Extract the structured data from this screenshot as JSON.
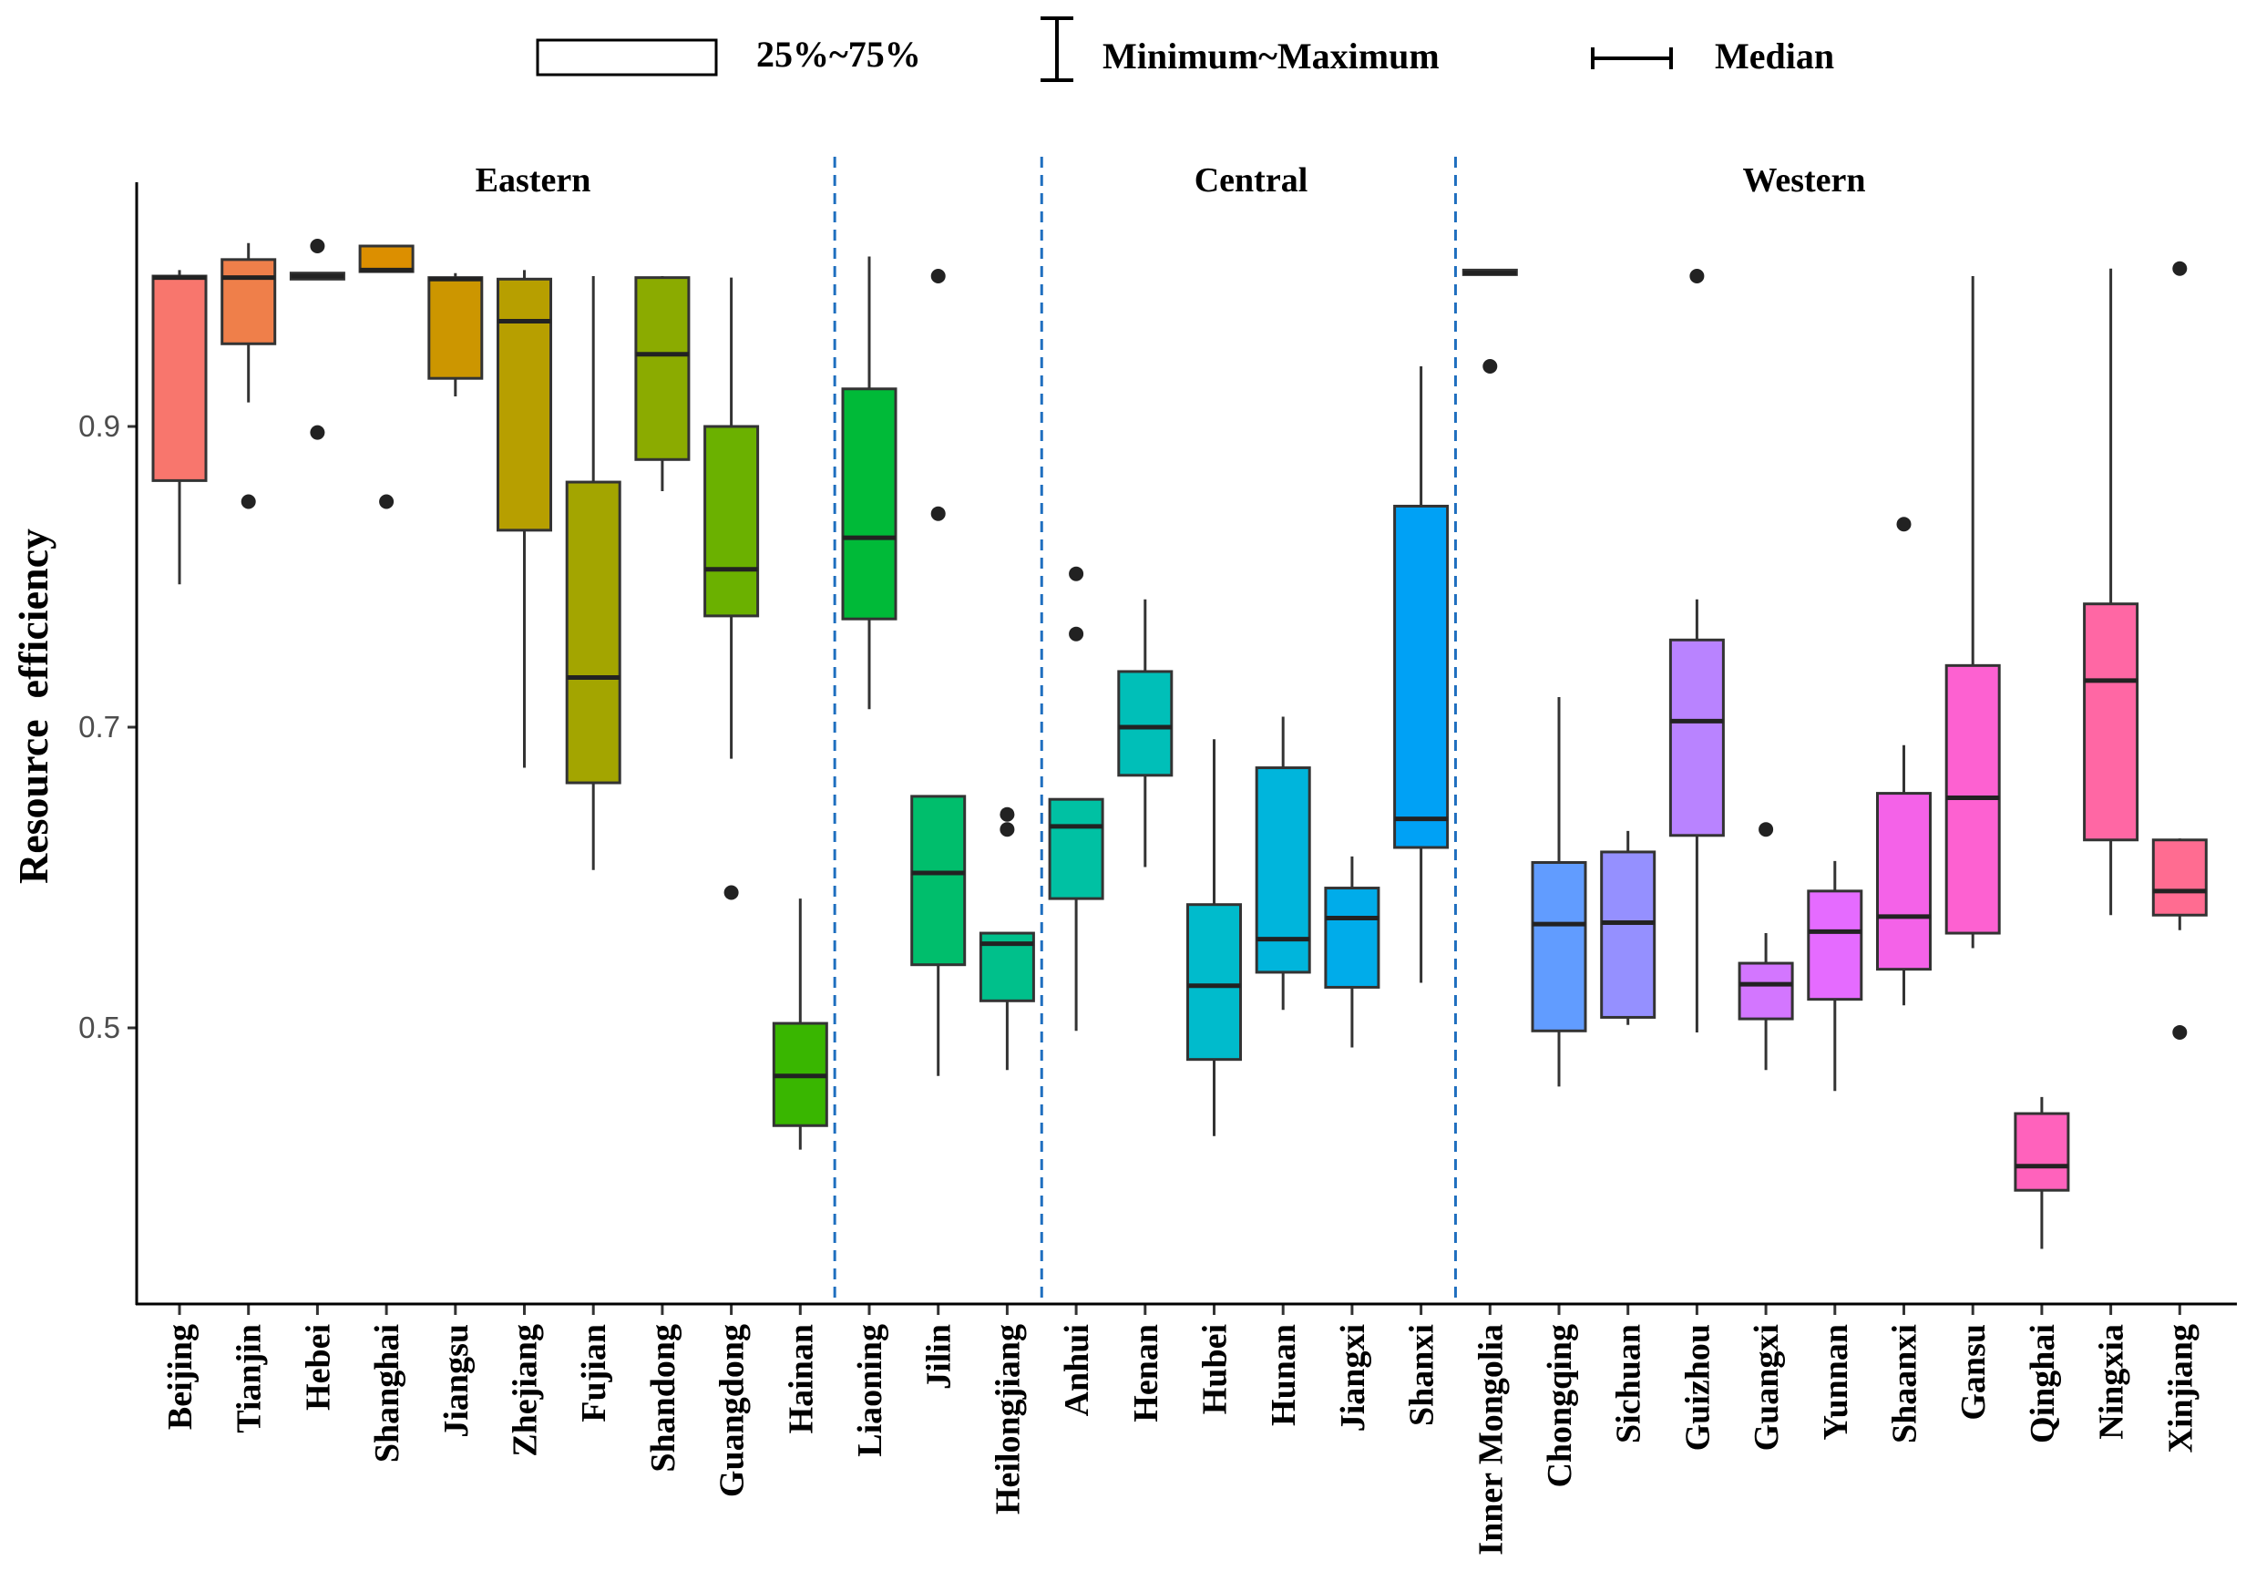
{
  "chart_data": {
    "type": "box",
    "title": "",
    "xlabel": "",
    "ylabel": "Resource  efficiency",
    "ylim": [
      0.318,
      1.06
    ],
    "yticks": [
      0.5,
      0.7,
      0.9
    ],
    "ytick_labels": [
      "0.5",
      "0.7",
      "0.9"
    ],
    "legend": {
      "position": "top",
      "entries": [
        {
          "symbol": "box",
          "label": "25%~75%"
        },
        {
          "symbol": "whisker",
          "label": "Minimum~Maximum"
        },
        {
          "symbol": "median",
          "label": "Median"
        }
      ]
    },
    "regions": [
      {
        "name": "Eastern",
        "label_over": "Eastern"
      },
      {
        "name": "Central",
        "label_over": "Central"
      },
      {
        "name": "Western",
        "label_over": "Western"
      }
    ],
    "region_dividers_after": [
      "Hainan",
      "Heilongjiang",
      "Shanxi"
    ],
    "divider_color": "#1f6fbf",
    "categories": [
      "Beijing",
      "Tianjin",
      "Hebei",
      "Shanghai",
      "Jiangsu",
      "Zhejiang",
      "Fujian",
      "Shandong",
      "Guangdong",
      "Hainan",
      "Liaoning",
      "Jilin",
      "Heilongjiang",
      "Anhui",
      "Henan",
      "Hubei",
      "Hunan",
      "Jiangxi",
      "Shanxi",
      "Inner Mongolia",
      "Chongqing",
      "Sichuan",
      "Guizhou",
      "Guangxi",
      "Yunnan",
      "Shaanxi",
      "Gansu",
      "Qinghai",
      "Ningxia",
      "Xinjiang"
    ],
    "boxes": [
      {
        "name": "Beijing",
        "q1": 0.864,
        "median": 0.999,
        "q3": 1.0,
        "wlow": 0.795,
        "whigh": 1.004,
        "outliers": [],
        "color": "#F8766D"
      },
      {
        "name": "Tianjin",
        "q1": 0.955,
        "median": 0.999,
        "q3": 1.011,
        "wlow": 0.916,
        "whigh": 1.022,
        "outliers": [
          0.85
        ],
        "color": "#EF7F4A"
      },
      {
        "name": "Hebei",
        "q1": 0.998,
        "median": 1.0,
        "q3": 1.002,
        "wlow": 0.998,
        "whigh": 1.002,
        "outliers": [
          1.02,
          0.896
        ],
        "color": "#E58700"
      },
      {
        "name": "Shanghai",
        "q1": 1.003,
        "median": 1.004,
        "q3": 1.02,
        "wlow": 1.003,
        "whigh": 1.02,
        "outliers": [
          0.85
        ],
        "color": "#DC8F00"
      },
      {
        "name": "Jiangsu",
        "q1": 0.932,
        "median": 0.998,
        "q3": 0.999,
        "wlow": 0.92,
        "whigh": 1.002,
        "outliers": [],
        "color": "#CC9600"
      },
      {
        "name": "Zhejiang",
        "q1": 0.831,
        "median": 0.97,
        "q3": 0.998,
        "wlow": 0.673,
        "whigh": 1.004,
        "outliers": [],
        "color": "#B79F00"
      },
      {
        "name": "Fujian",
        "q1": 0.663,
        "median": 0.733,
        "q3": 0.863,
        "wlow": 0.605,
        "whigh": 1.0,
        "outliers": [],
        "color": "#A3A500"
      },
      {
        "name": "Shandong",
        "q1": 0.878,
        "median": 0.948,
        "q3": 0.999,
        "wlow": 0.857,
        "whigh": 1.0,
        "outliers": [],
        "color": "#8BAB00"
      },
      {
        "name": "Guangdong",
        "q1": 0.774,
        "median": 0.805,
        "q3": 0.9,
        "wlow": 0.679,
        "whigh": 0.999,
        "outliers": [
          0.59
        ],
        "color": "#6BB100"
      },
      {
        "name": "Hainan",
        "q1": 0.435,
        "median": 0.468,
        "q3": 0.503,
        "wlow": 0.419,
        "whigh": 0.586,
        "outliers": [],
        "color": "#39B600"
      },
      {
        "name": "Liaoning",
        "q1": 0.772,
        "median": 0.826,
        "q3": 0.925,
        "wlow": 0.712,
        "whigh": 1.013,
        "outliers": [],
        "color": "#00BA38"
      },
      {
        "name": "Jilin",
        "q1": 0.542,
        "median": 0.603,
        "q3": 0.654,
        "wlow": 0.468,
        "whigh": 0.654,
        "outliers": [
          1.0,
          0.842
        ],
        "color": "#00BE6C"
      },
      {
        "name": "Heilongjiang",
        "q1": 0.518,
        "median": 0.556,
        "q3": 0.563,
        "wlow": 0.472,
        "whigh": 0.563,
        "outliers": [
          0.642,
          0.632
        ],
        "color": "#00C08B"
      },
      {
        "name": "Anhui",
        "q1": 0.586,
        "median": 0.634,
        "q3": 0.652,
        "wlow": 0.498,
        "whigh": 0.652,
        "outliers": [
          0.802,
          0.762
        ],
        "color": "#00C1A3"
      },
      {
        "name": "Henan",
        "q1": 0.668,
        "median": 0.7,
        "q3": 0.737,
        "wlow": 0.607,
        "whigh": 0.785,
        "outliers": [],
        "color": "#00BFB8"
      },
      {
        "name": "Hubei",
        "q1": 0.479,
        "median": 0.528,
        "q3": 0.582,
        "wlow": 0.428,
        "whigh": 0.692,
        "outliers": [],
        "color": "#00BBCC"
      },
      {
        "name": "Hunan",
        "q1": 0.537,
        "median": 0.559,
        "q3": 0.673,
        "wlow": 0.512,
        "whigh": 0.707,
        "outliers": [],
        "color": "#00B5DC"
      },
      {
        "name": "Jiangxi",
        "q1": 0.527,
        "median": 0.573,
        "q3": 0.593,
        "wlow": 0.487,
        "whigh": 0.614,
        "outliers": [],
        "color": "#00ACEA"
      },
      {
        "name": "Shanxi",
        "q1": 0.62,
        "median": 0.639,
        "q3": 0.847,
        "wlow": 0.53,
        "whigh": 0.94,
        "outliers": [],
        "color": "#00A1F5"
      },
      {
        "name": "Inner Mongolia",
        "q1": 1.001,
        "median": 1.002,
        "q3": 1.004,
        "wlow": 1.001,
        "whigh": 1.004,
        "outliers": [
          0.94
        ],
        "color": "#4D91FF"
      },
      {
        "name": "Chongqing",
        "q1": 0.498,
        "median": 0.569,
        "q3": 0.61,
        "wlow": 0.461,
        "whigh": 0.72,
        "outliers": [],
        "color": "#619CFF"
      },
      {
        "name": "Sichuan",
        "q1": 0.507,
        "median": 0.57,
        "q3": 0.617,
        "wlow": 0.502,
        "whigh": 0.631,
        "outliers": [],
        "color": "#9590FF"
      },
      {
        "name": "Guizhou",
        "q1": 0.628,
        "median": 0.704,
        "q3": 0.758,
        "wlow": 0.497,
        "whigh": 0.785,
        "outliers": [
          1.0
        ],
        "color": "#B983FF"
      },
      {
        "name": "Guangxi",
        "q1": 0.506,
        "median": 0.529,
        "q3": 0.543,
        "wlow": 0.472,
        "whigh": 0.563,
        "outliers": [
          0.632
        ],
        "color": "#D376FF"
      },
      {
        "name": "Yunnan",
        "q1": 0.519,
        "median": 0.564,
        "q3": 0.591,
        "wlow": 0.458,
        "whigh": 0.611,
        "outliers": [],
        "color": "#E56BFF"
      },
      {
        "name": "Shaanxi",
        "q1": 0.539,
        "median": 0.574,
        "q3": 0.656,
        "wlow": 0.515,
        "whigh": 0.688,
        "outliers": [
          0.835
        ],
        "color": "#F462E8"
      },
      {
        "name": "Gansu",
        "q1": 0.563,
        "median": 0.653,
        "q3": 0.741,
        "wlow": 0.553,
        "whigh": 1.0,
        "outliers": [],
        "color": "#FD61D1"
      },
      {
        "name": "Qinghai",
        "q1": 0.392,
        "median": 0.408,
        "q3": 0.443,
        "wlow": 0.353,
        "whigh": 0.454,
        "outliers": [],
        "color": "#FF62BC"
      },
      {
        "name": "Ningxia",
        "q1": 0.625,
        "median": 0.731,
        "q3": 0.782,
        "wlow": 0.575,
        "whigh": 1.005,
        "outliers": [],
        "color": "#FF67A4"
      },
      {
        "name": "Xinjiang",
        "q1": 0.575,
        "median": 0.591,
        "q3": 0.625,
        "wlow": 0.565,
        "whigh": 0.626,
        "outliers": [
          1.005,
          0.497
        ],
        "color": "#FF6C91"
      }
    ]
  }
}
